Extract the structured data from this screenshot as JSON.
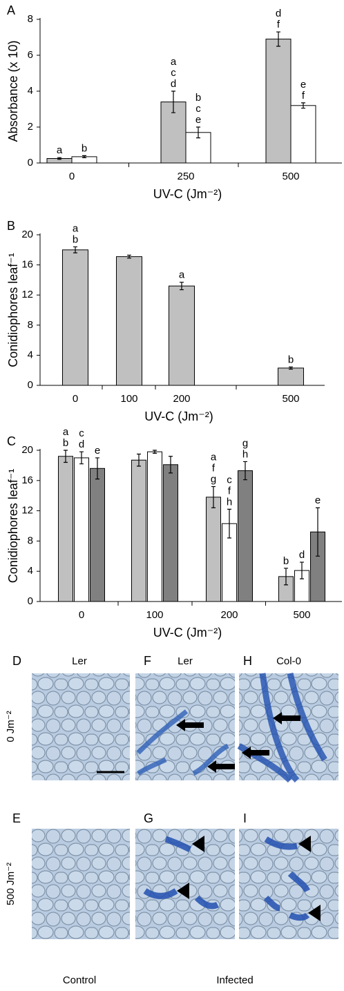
{
  "chart_data": [
    {
      "type": "bar",
      "panel": "A",
      "y_label": "Absorbance (x 10)",
      "x_label": "UV-C (Jm⁻²)",
      "categories": [
        "0",
        "250",
        "500"
      ],
      "ylim": [
        0,
        8
      ],
      "yticks": [
        0,
        2,
        4,
        6,
        8
      ],
      "series": [
        {
          "color": "#c0c0c0",
          "values": [
            0.25,
            3.4,
            6.9
          ],
          "errors": [
            0.05,
            0.6,
            0.4
          ],
          "annotations": [
            [
              "a"
            ],
            [
              "a",
              "c",
              "d"
            ],
            [
              "d",
              "f"
            ]
          ]
        },
        {
          "color": "#ffffff",
          "values": [
            0.35,
            1.7,
            3.2
          ],
          "errors": [
            0.06,
            0.3,
            0.15
          ],
          "annotations": [
            [
              "b"
            ],
            [
              "b",
              "c",
              "e"
            ],
            [
              "e",
              "f"
            ]
          ]
        }
      ]
    },
    {
      "type": "bar",
      "panel": "B",
      "y_label": "Conidiophores leaf⁻¹",
      "x_label": "UV-C (Jm⁻²)",
      "categories": [
        "0",
        "100",
        "200",
        "500"
      ],
      "ylim": [
        0,
        20
      ],
      "yticks": [
        0,
        4,
        8,
        12,
        16,
        20
      ],
      "series": [
        {
          "color": "#c0c0c0",
          "values": [
            18.0,
            17.1,
            13.2,
            2.3
          ],
          "errors": [
            0.4,
            0.2,
            0.5,
            0.15
          ],
          "annotations": [
            [
              "a",
              "b"
            ],
            [],
            [
              "a"
            ],
            [
              "b"
            ]
          ]
        }
      ]
    },
    {
      "type": "bar",
      "panel": "C",
      "y_label": "Conidiophores leaf⁻¹",
      "x_label": "UV-C (Jm⁻²)",
      "categories": [
        "0",
        "100",
        "200",
        "500"
      ],
      "ylim": [
        0,
        20
      ],
      "yticks": [
        0,
        4,
        8,
        12,
        16,
        20
      ],
      "series": [
        {
          "color": "#c0c0c0",
          "values": [
            19.2,
            18.7,
            13.8,
            3.3
          ],
          "errors": [
            0.8,
            0.8,
            1.4,
            1.1
          ],
          "annotations": [
            [
              "a",
              "b"
            ],
            [],
            [
              "a",
              "f",
              "g"
            ],
            [
              "b"
            ]
          ]
        },
        {
          "color": "#ffffff",
          "values": [
            19.0,
            19.8,
            10.3,
            4.1
          ],
          "errors": [
            0.8,
            0.2,
            1.9,
            1.1
          ],
          "annotations": [
            [
              "c",
              "d"
            ],
            [],
            [
              "c",
              "f",
              "h"
            ],
            [
              "d"
            ]
          ]
        },
        {
          "color": "#808080",
          "values": [
            17.6,
            18.1,
            17.3,
            9.2
          ],
          "errors": [
            1.4,
            1.1,
            1.2,
            3.2
          ],
          "annotations": [
            [
              "e"
            ],
            [],
            [
              "g",
              "h"
            ],
            [
              "e"
            ]
          ]
        }
      ]
    }
  ],
  "micrographs": {
    "panels": [
      {
        "letter": "D",
        "title": "Ler"
      },
      {
        "letter": "F",
        "title": "Ler"
      },
      {
        "letter": "H",
        "title": "Col-0"
      },
      {
        "letter": "E"
      },
      {
        "letter": "G"
      },
      {
        "letter": "I"
      }
    ],
    "row_labels": [
      "0 Jm⁻²",
      "500 Jm⁻²"
    ],
    "column_labels": [
      "Control",
      "Infected"
    ]
  }
}
